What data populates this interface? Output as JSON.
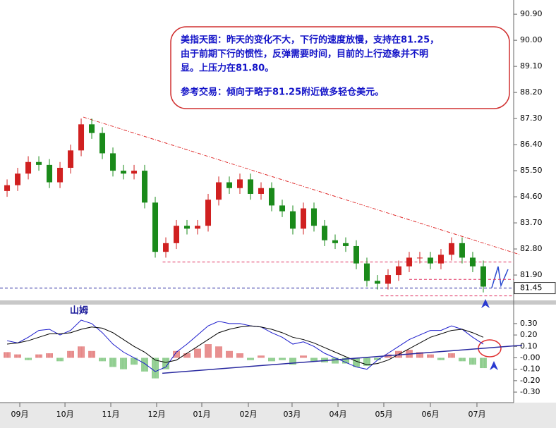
{
  "chart_data": [
    {
      "type": "candlestick",
      "annotation": {
        "lines": [
          "美指天图：昨天的变化不大，下行的速度放慢，支持在81.25，",
          "由于前期下行的惯性，反弹需要时间，目前的上行迹象并不明",
          "显。上压力在81.80。",
          "参考交易：倾向于略于81.25附近做多轻仓美元。"
        ]
      },
      "x": [
        0,
        1,
        2,
        3,
        4,
        5,
        6,
        7,
        8,
        9,
        10,
        11,
        12,
        13,
        14,
        15,
        16,
        17,
        18,
        19,
        20,
        21,
        22,
        23,
        24,
        25,
        26,
        27,
        28,
        29,
        30,
        31,
        32,
        33,
        34,
        35,
        36,
        37,
        38,
        39,
        40,
        41,
        42,
        43,
        44,
        45
      ],
      "open": [
        84.8,
        85.0,
        85.4,
        85.8,
        85.7,
        85.1,
        85.6,
        86.2,
        87.1,
        86.8,
        86.1,
        85.5,
        85.4,
        85.5,
        84.4,
        82.7,
        83.0,
        83.6,
        83.5,
        83.6,
        84.5,
        85.1,
        84.9,
        85.2,
        84.7,
        84.9,
        84.3,
        84.1,
        83.5,
        84.2,
        83.6,
        83.1,
        83.0,
        82.9,
        82.3,
        81.7,
        81.6,
        81.9,
        82.2,
        82.5,
        82.5,
        82.3,
        82.6,
        83.0,
        82.5,
        82.2
      ],
      "high": [
        85.2,
        85.6,
        86.0,
        86.0,
        85.9,
        85.8,
        86.4,
        87.3,
        87.3,
        87.0,
        86.3,
        85.7,
        85.7,
        85.7,
        84.6,
        83.2,
        83.8,
        83.8,
        83.8,
        84.7,
        85.3,
        85.3,
        85.4,
        85.4,
        85.1,
        85.1,
        84.5,
        84.3,
        84.4,
        84.4,
        83.8,
        83.3,
        83.2,
        83.1,
        82.5,
        81.9,
        82.1,
        82.4,
        82.7,
        82.7,
        82.7,
        82.8,
        83.2,
        83.2,
        82.7,
        82.4
      ],
      "low": [
        84.6,
        84.8,
        85.2,
        85.5,
        84.9,
        84.9,
        85.4,
        86.0,
        86.6,
        85.9,
        85.3,
        85.2,
        85.2,
        84.2,
        82.5,
        82.5,
        82.8,
        83.3,
        83.3,
        83.4,
        84.3,
        84.7,
        84.7,
        84.5,
        84.5,
        84.1,
        83.9,
        83.3,
        83.3,
        83.4,
        82.9,
        82.8,
        82.7,
        82.1,
        81.5,
        81.4,
        81.4,
        81.7,
        82.0,
        82.3,
        82.1,
        82.1,
        82.4,
        82.3,
        82.0,
        81.3
      ],
      "close": [
        85.0,
        85.4,
        85.8,
        85.7,
        85.1,
        85.6,
        86.2,
        87.1,
        86.8,
        86.1,
        85.5,
        85.4,
        85.5,
        84.4,
        82.7,
        83.0,
        83.6,
        83.5,
        83.6,
        84.5,
        85.1,
        84.9,
        85.2,
        84.7,
        84.9,
        84.3,
        84.1,
        83.5,
        84.2,
        83.6,
        83.1,
        83.0,
        82.9,
        82.3,
        81.7,
        81.6,
        81.9,
        82.2,
        82.5,
        82.5,
        82.3,
        82.6,
        83.0,
        82.5,
        82.2,
        81.5
      ],
      "colors": {
        "up": "#d02020",
        "down": "#1a8a1a"
      },
      "trendline": {
        "x": [
          7.2,
          48.5
        ],
        "y": [
          87.35,
          82.6
        ],
        "color": "#e03030"
      },
      "levels": [
        {
          "value": 82.35,
          "from": 14.7,
          "color": "#e03060"
        },
        {
          "value": 81.75,
          "from": 38,
          "color": "#e03060"
        },
        {
          "value": 81.18,
          "from": 35.3,
          "color": "#e03060"
        },
        {
          "value": 81.45,
          "from": -0.67,
          "color": "#1a1a9a"
        }
      ],
      "last_price": 81.45,
      "xlim": [
        -0.67,
        47.87
      ],
      "ylim": [
        81.05,
        91.39
      ],
      "yticks": [
        {
          "value": 90.9,
          "label": "90.90"
        },
        {
          "value": 90.0,
          "label": "90.00"
        },
        {
          "value": 89.1,
          "label": "89.10"
        },
        {
          "value": 88.2,
          "label": "88.20"
        },
        {
          "value": 87.3,
          "label": "87.30"
        },
        {
          "value": 86.4,
          "label": "86.40"
        },
        {
          "value": 85.5,
          "label": "85.50"
        },
        {
          "value": 84.6,
          "label": "84.60"
        },
        {
          "value": 83.7,
          "label": "83.70"
        },
        {
          "value": 82.8,
          "label": "82.80"
        },
        {
          "value": 81.9,
          "label": "81.90"
        }
      ]
    },
    {
      "type": "macd",
      "title": "山姆",
      "x": [
        0,
        1,
        2,
        3,
        4,
        5,
        6,
        7,
        8,
        9,
        10,
        11,
        12,
        13,
        14,
        15,
        16,
        17,
        18,
        19,
        20,
        21,
        22,
        23,
        24,
        25,
        26,
        27,
        28,
        29,
        30,
        31,
        32,
        33,
        34,
        35,
        36,
        37,
        38,
        39,
        40,
        41,
        42,
        43,
        44,
        45
      ],
      "histogram": [
        0.05,
        0.03,
        -0.02,
        0.03,
        0.04,
        -0.03,
        0.06,
        0.1,
        0.06,
        -0.03,
        -0.08,
        -0.1,
        -0.06,
        -0.12,
        -0.18,
        -0.1,
        0.06,
        0.04,
        0.08,
        0.12,
        0.1,
        0.06,
        0.04,
        -0.02,
        0.02,
        -0.03,
        -0.02,
        -0.06,
        0.02,
        -0.03,
        -0.04,
        -0.05,
        -0.05,
        -0.08,
        -0.07,
        -0.02,
        0.03,
        0.06,
        0.07,
        0.05,
        0.03,
        -0.02,
        0.04,
        -0.03,
        -0.06,
        -0.09
      ],
      "colors": {
        "up": "#d02020",
        "down": "#2aa02a"
      },
      "series": [
        {
          "color": "#1a1acc",
          "values": [
            0.15,
            0.13,
            0.18,
            0.24,
            0.25,
            0.2,
            0.24,
            0.33,
            0.3,
            0.22,
            0.12,
            0.05,
            0.0,
            -0.05,
            -0.12,
            -0.08,
            0.05,
            0.12,
            0.2,
            0.28,
            0.32,
            0.3,
            0.3,
            0.28,
            0.27,
            0.22,
            0.18,
            0.12,
            0.14,
            0.1,
            0.04,
            0.0,
            -0.04,
            -0.08,
            -0.1,
            -0.02,
            0.04,
            0.1,
            0.16,
            0.2,
            0.24,
            0.24,
            0.28,
            0.25,
            0.18,
            0.12
          ]
        },
        {
          "color": "#000000",
          "values": [
            0.12,
            0.13,
            0.15,
            0.18,
            0.21,
            0.21,
            0.22,
            0.25,
            0.27,
            0.26,
            0.22,
            0.16,
            0.1,
            0.05,
            -0.02,
            -0.04,
            -0.02,
            0.04,
            0.1,
            0.16,
            0.22,
            0.25,
            0.27,
            0.28,
            0.27,
            0.25,
            0.22,
            0.18,
            0.16,
            0.13,
            0.09,
            0.05,
            0.01,
            -0.03,
            -0.06,
            -0.05,
            -0.02,
            0.03,
            0.08,
            0.13,
            0.18,
            0.21,
            0.24,
            0.25,
            0.22,
            0.18
          ]
        }
      ],
      "trendline": {
        "x": [
          14.67,
          48.67
        ],
        "y": [
          -0.135,
          0.11
        ],
        "color": "#2a2aa0"
      },
      "xlim": [
        -0.67,
        47.87
      ],
      "ylim": [
        -0.386,
        0.466
      ],
      "yticks": [
        {
          "value": 0.3,
          "label": "0.30"
        },
        {
          "value": 0.2,
          "label": "0.20"
        },
        {
          "value": 0.1,
          "label": "0.10"
        },
        {
          "value": 0,
          "label": "-0.00"
        },
        {
          "value": -0.1,
          "label": "-0.10"
        },
        {
          "value": -0.2,
          "label": "-0.20"
        },
        {
          "value": -0.3,
          "label": "-0.30"
        }
      ],
      "xticks": [
        {
          "value": 1.2,
          "label": "09月"
        },
        {
          "value": 5.47,
          "label": "10月"
        },
        {
          "value": 9.8,
          "label": "11月"
        },
        {
          "value": 14.13,
          "label": "12月"
        },
        {
          "value": 18.4,
          "label": "01月"
        },
        {
          "value": 22.8,
          "label": "02月"
        },
        {
          "value": 26.93,
          "label": "03月"
        },
        {
          "value": 31.27,
          "label": "04月"
        },
        {
          "value": 35.6,
          "label": "05月"
        },
        {
          "value": 40,
          "label": "06月"
        },
        {
          "value": 44.4,
          "label": "07月"
        }
      ]
    }
  ]
}
